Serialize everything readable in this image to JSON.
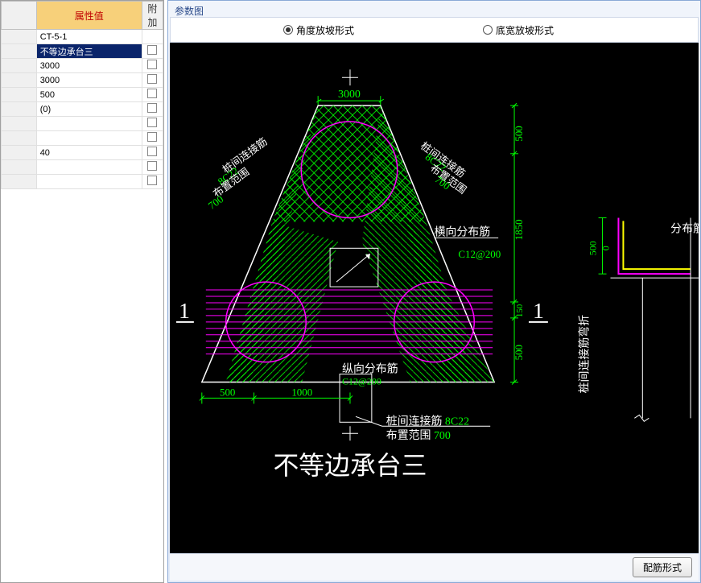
{
  "table": {
    "header_value": "属性值",
    "header_extra": "附加",
    "rows": [
      {
        "value": "CT-5-1",
        "chk": false,
        "selected": false
      },
      {
        "value": "不等边承台三",
        "chk": true,
        "selected": true
      },
      {
        "value": "3000",
        "chk": true,
        "selected": false
      },
      {
        "value": "3000",
        "chk": true,
        "selected": false
      },
      {
        "value": "500",
        "chk": true,
        "selected": false
      },
      {
        "value": "(0)",
        "chk": true,
        "selected": false
      },
      {
        "value": "",
        "chk": true,
        "selected": false
      },
      {
        "value": "",
        "chk": true,
        "selected": false
      },
      {
        "value": "40",
        "chk": true,
        "selected": false
      },
      {
        "value": "",
        "chk": true,
        "selected": false
      },
      {
        "value": "",
        "chk": true,
        "selected": false
      }
    ]
  },
  "param": {
    "groupbox_title": "参数图",
    "radio1": "角度放坡形式",
    "radio2": "底宽放坡形式",
    "button_label": "配筋形式"
  },
  "drawing": {
    "title_big": "不等边承台三",
    "top_dim": "3000",
    "right_dims": [
      "500",
      "1850",
      "150",
      "500"
    ],
    "bottom_dims": [
      "500",
      "1000"
    ],
    "section_marker": "1",
    "labels": {
      "left_diag_a": "桩间连接筋",
      "left_diag_b": "8C22",
      "left_diag_c": "布置范围",
      "left_diag_d": "700",
      "right_diag_a": "桩间连接筋",
      "right_diag_b": "8C22",
      "right_diag_c": "布置范围",
      "right_diag_d": "700",
      "horiz_label": "横向分布筋",
      "horiz_spec": "C12@200",
      "vert_label": "纵向分布筋",
      "vert_spec": "C12@200",
      "bottom_line1a": "桩间连接筋 ",
      "bottom_line1b": "8C22",
      "bottom_line2a": "布置范围 ",
      "bottom_line2b": "700"
    },
    "side_detail": {
      "label_vert": "桩间连接筋弯折",
      "dim1": "500",
      "dim2": "0",
      "label_right": "分布筋"
    },
    "colors": {
      "bg": "#000000",
      "green": "#00ff00",
      "magenta": "#ff00ff",
      "white": "#ffffff",
      "yellow": "#ffff00",
      "cyan": "#00ffff"
    }
  }
}
